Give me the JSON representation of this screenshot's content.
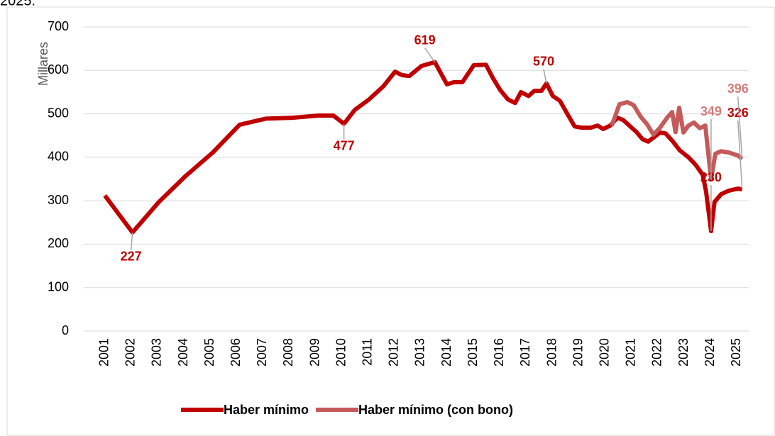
{
  "chart_data": {
    "type": "line",
    "title": "2025.",
    "y_label": "Millares",
    "xlim": [
      2000.2,
      2025.45
    ],
    "xticks": [
      2001,
      2002,
      2003,
      2004,
      2005,
      2006,
      2007,
      2008,
      2009,
      2010,
      2011,
      2012,
      2013,
      2014,
      2015,
      2016,
      2017,
      2018,
      2019,
      2020,
      2021,
      2022,
      2023,
      2024,
      2025
    ],
    "ylim": [
      0,
      700
    ],
    "yticks": [
      0,
      100,
      200,
      300,
      400,
      500,
      600,
      700
    ],
    "grid": true,
    "legend": "bottom",
    "series": [
      {
        "name": "Haber mínimo",
        "color": "#c00000",
        "label_color": "#c00000",
        "x": [
          2001,
          2002.05,
          2003.05,
          2004.07,
          2005.1,
          2006.12,
          2007.12,
          2008.12,
          2009.11,
          2009.68,
          2010.08,
          2010.49,
          2011.03,
          2011.57,
          2012.02,
          2012.29,
          2012.56,
          2013.02,
          2013.53,
          2013.99,
          2014.26,
          2014.58,
          2015.01,
          2015.47,
          2015.74,
          2016.01,
          2016.31,
          2016.58,
          2016.8,
          2017.09,
          2017.31,
          2017.58,
          2017.77,
          2018.01,
          2018.28,
          2018.57,
          2018.84,
          2019.11,
          2019.44,
          2019.71,
          2019.92,
          2020.19,
          2020.46,
          2020.68,
          2020.95,
          2021.19,
          2021.41,
          2021.63,
          2021.87,
          2022.08,
          2022.29,
          2022.56,
          2022.83,
          2023.16,
          2023.43,
          2023.7,
          2023.83,
          2024.02,
          2024.15,
          2024.4,
          2024.69,
          2025.04,
          2025.2
        ],
        "values": [
          312,
          227,
          297,
          357,
          411,
          475,
          489,
          491,
          496,
          496,
          477,
          509,
          533,
          563,
          597,
          589,
          587,
          610,
          619,
          568,
          573,
          573,
          612,
          613,
          582,
          555,
          533,
          525,
          550,
          541,
          553,
          553,
          570,
          541,
          530,
          499,
          471,
          468,
          468,
          473,
          465,
          473,
          491,
          486,
          471,
          458,
          442,
          436,
          447,
          457,
          455,
          437,
          416,
          400,
          383,
          360,
          321,
          230,
          297,
          315,
          323,
          328,
          326
        ],
        "labeled": [
          1,
          10,
          18,
          32,
          57,
          62
        ]
      },
      {
        "name": "Haber mínimo (con bono)",
        "color": "#c55a5a",
        "label_color": "#d47c7c",
        "x": [
          2020.25,
          2020.54,
          2020.84,
          2021.08,
          2021.35,
          2021.59,
          2021.83,
          2022.08,
          2022.35,
          2022.54,
          2022.67,
          2022.81,
          2022.97,
          2023.16,
          2023.37,
          2023.59,
          2023.8,
          2024.02,
          2024.18,
          2024.4,
          2024.69,
          2025.04,
          2025.2
        ],
        "values": [
          473,
          522,
          527,
          520,
          493,
          476,
          452,
          468,
          491,
          504,
          458,
          514,
          457,
          473,
          480,
          467,
          473,
          349,
          408,
          414,
          411,
          404,
          396
        ],
        "labeled": [
          17,
          22
        ]
      }
    ]
  }
}
